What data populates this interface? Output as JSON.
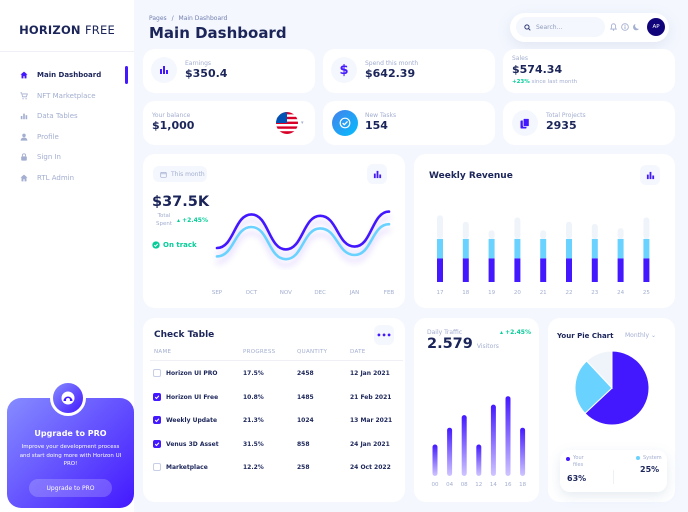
{
  "brand": {
    "bold": "HORIZON",
    "light": "FREE"
  },
  "nav": [
    {
      "label": "Main Dashboard",
      "icon": "home-icon",
      "active": true
    },
    {
      "label": "NFT Marketplace",
      "icon": "cart-icon",
      "active": false
    },
    {
      "label": "Data Tables",
      "icon": "bar-chart-icon",
      "active": false
    },
    {
      "label": "Profile",
      "icon": "person-icon",
      "active": false
    },
    {
      "label": "Sign In",
      "icon": "lock-icon",
      "active": false
    },
    {
      "label": "RTL Admin",
      "icon": "home-icon",
      "active": false
    }
  ],
  "promo": {
    "title": "Upgrade to PRO",
    "text": "Improve your development process and start doing more with Horizon UI PRO!",
    "button": "Upgrade to PRO"
  },
  "header": {
    "breadcrumb_parent": "Pages",
    "breadcrumb_sep": "/",
    "breadcrumb_current": "Main Dashboard",
    "title": "Main Dashboard",
    "search_placeholder": "Search...",
    "avatar_initials": "AP"
  },
  "stats": {
    "earnings": {
      "label": "Earnings",
      "value": "$350.4"
    },
    "spend": {
      "label": "Spend this month",
      "value": "$642.39"
    },
    "sales": {
      "label": "Sales",
      "value": "$574.34",
      "change": "+23%",
      "change_text": "since last month"
    },
    "balance": {
      "label": "Your balance",
      "value": "$1,000"
    },
    "tasks": {
      "label": "New Tasks",
      "value": "154"
    },
    "projects": {
      "label": "Total Projects",
      "value": "2935"
    }
  },
  "total_spent": {
    "pill": "This month",
    "value": "$37.5K",
    "label": "Total Spent",
    "change": "+2.45%",
    "status": "On track"
  },
  "weekly_revenue": {
    "title": "Weekly Revenue"
  },
  "check_table": {
    "title": "Check Table",
    "columns": [
      "NAME",
      "PROGRESS",
      "QUANTITY",
      "DATE"
    ],
    "rows": [
      {
        "name": "Horizon UI PRO",
        "progress": "17.5%",
        "quantity": "2458",
        "date": "12 Jan 2021",
        "checked": false
      },
      {
        "name": "Horizon UI Free",
        "progress": "10.8%",
        "quantity": "1485",
        "date": "21 Feb 2021",
        "checked": true
      },
      {
        "name": "Weekly Update",
        "progress": "21.3%",
        "quantity": "1024",
        "date": "13 Mar 2021",
        "checked": true
      },
      {
        "name": "Venus 3D Asset",
        "progress": "31.5%",
        "quantity": "858",
        "date": "24 Jan 2021",
        "checked": true
      },
      {
        "name": "Marketplace",
        "progress": "12.2%",
        "quantity": "258",
        "date": "24 Oct 2022",
        "checked": false
      }
    ]
  },
  "daily_traffic": {
    "label": "Daily Traffic",
    "value": "2.579",
    "unit": "Visitors",
    "change": "+2.45%"
  },
  "pie": {
    "title": "Your Pie Chart",
    "period": "Monthly",
    "legend_your_files": "Your files",
    "legend_system": "System",
    "your_files_pct": "63%",
    "system_pct": "25%"
  },
  "colors": {
    "primary": "#4318ff",
    "cyan": "#6ad2ff",
    "light": "#eff4fb",
    "navy": "#1b2559",
    "green": "#05cd99"
  },
  "chart_data": [
    {
      "type": "line",
      "categories": [
        "SEP",
        "OCT",
        "NOV",
        "DEC",
        "JAN",
        "FEB"
      ],
      "series": [
        {
          "values": [
            30,
            78,
            28,
            76,
            32,
            82
          ]
        },
        {
          "values": [
            18,
            60,
            14,
            58,
            20,
            64
          ]
        }
      ],
      "ylim": [
        0,
        100
      ]
    },
    {
      "type": "bar",
      "stacked": true,
      "categories": [
        "17",
        "18",
        "19",
        "20",
        "21",
        "22",
        "23",
        "24",
        "25"
      ],
      "series": [
        {
          "values": [
            22,
            22,
            22,
            22,
            22,
            22,
            22,
            22,
            22
          ]
        },
        {
          "values": [
            18,
            18,
            18,
            18,
            18,
            18,
            18,
            18,
            18
          ]
        },
        {
          "values": [
            22,
            16,
            8,
            20,
            8,
            16,
            14,
            10,
            20
          ]
        }
      ],
      "ylim": [
        0,
        65
      ]
    },
    {
      "type": "bar",
      "categories": [
        "00",
        "04",
        "08",
        "12",
        "14",
        "16",
        "18"
      ],
      "values": [
        30,
        46,
        58,
        30,
        68,
        76,
        46
      ],
      "ylim": [
        0,
        80
      ]
    },
    {
      "type": "pie",
      "labels": [
        "Your files",
        "System",
        "Empty"
      ],
      "values": [
        63,
        25,
        12
      ]
    }
  ]
}
